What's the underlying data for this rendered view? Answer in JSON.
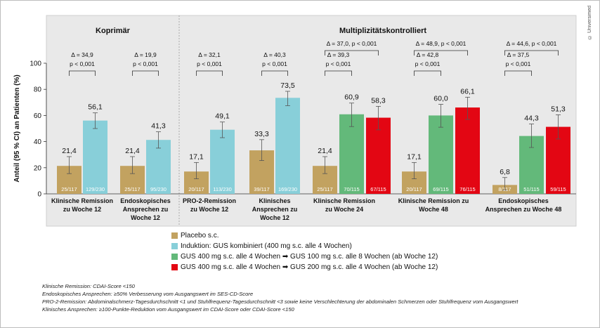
{
  "chart_data": {
    "type": "bar",
    "ylabel": "Anteil (95 % CI) an Patienten (%)",
    "ylim": [
      0,
      100
    ],
    "yticks": [
      "0",
      "20",
      "40",
      "60",
      "80",
      "100"
    ],
    "sections": [
      "Koprimär",
      "Multiplizitätskontrolliert"
    ],
    "series": [
      {
        "name": "Placebo s.c.",
        "color": "#c2a260"
      },
      {
        "name": "Induktion: GUS kombiniert (400 mg s.c. alle 4 Wochen)",
        "color": "#88cfd9"
      },
      {
        "name": "GUS 400 mg s.c. alle 4 Wochen ➡ GUS 100 mg s.c. alle 8 Wochen (ab Woche 12)",
        "color": "#63b97a"
      },
      {
        "name": "GUS 400 mg s.c. alle 4 Wochen ➡ GUS 200 mg s.c. alle 4 Wochen (ab Woche 12)",
        "color": "#e30613"
      }
    ],
    "groups": [
      {
        "label": [
          "Klinische Remission",
          "zu Woche 12"
        ],
        "bars": [
          {
            "series": 0,
            "value": 21.4,
            "label": "21,4",
            "ci": [
              15.5,
              28.5
            ],
            "n": "25/117"
          },
          {
            "series": 1,
            "value": 56.1,
            "label": "56,1",
            "ci": [
              50.0,
              62.0
            ],
            "n": "129/230"
          }
        ],
        "annotations": [
          {
            "from": 0,
            "to": 1,
            "level": 1,
            "delta": "Δ = 34,9",
            "p": "p < 0,001"
          }
        ]
      },
      {
        "label": [
          "Endoskopisches",
          "Ansprechen zu",
          "Woche 12"
        ],
        "bars": [
          {
            "series": 0,
            "value": 21.4,
            "label": "21,4",
            "ci": [
              15.5,
              28.5
            ],
            "n": "25/117"
          },
          {
            "series": 1,
            "value": 41.3,
            "label": "41,3",
            "ci": [
              35.0,
              47.5
            ],
            "n": "95/230"
          }
        ],
        "annotations": [
          {
            "from": 0,
            "to": 1,
            "level": 1,
            "delta": "Δ = 19,9",
            "p": "p < 0,001"
          }
        ]
      },
      {
        "label": [
          "PRO-2-Remission",
          "zu Woche 12"
        ],
        "bars": [
          {
            "series": 0,
            "value": 17.1,
            "label": "17,1",
            "ci": [
              11.5,
              24.0
            ],
            "n": "20/117"
          },
          {
            "series": 1,
            "value": 49.1,
            "label": "49,1",
            "ci": [
              43.0,
              55.0
            ],
            "n": "113/230"
          }
        ],
        "annotations": [
          {
            "from": 0,
            "to": 1,
            "level": 1,
            "delta": "Δ = 32,1",
            "p": "p < 0,001"
          }
        ]
      },
      {
        "label": [
          "Klinisches",
          "Ansprechen zu",
          "Woche 12"
        ],
        "bars": [
          {
            "series": 0,
            "value": 33.3,
            "label": "33,3",
            "ci": [
              25.5,
              41.5
            ],
            "n": "39/117"
          },
          {
            "series": 1,
            "value": 73.5,
            "label": "73,5",
            "ci": [
              67.5,
              78.5
            ],
            "n": "169/230"
          }
        ],
        "annotations": [
          {
            "from": 0,
            "to": 1,
            "level": 1,
            "delta": "Δ = 40,3",
            "p": "p < 0,001"
          }
        ]
      },
      {
        "label": [
          "Klinische Remission",
          "zu Woche 24"
        ],
        "bars": [
          {
            "series": 0,
            "value": 21.4,
            "label": "21,4",
            "ci": [
              15.5,
              28.5
            ],
            "n": "25/117"
          },
          {
            "series": 2,
            "value": 60.9,
            "label": "60,9",
            "ci": [
              51.5,
              69.5
            ],
            "n": "70/115"
          },
          {
            "series": 3,
            "value": 58.3,
            "label": "58,3",
            "ci": [
              49.0,
              67.0
            ],
            "n": "67/115"
          }
        ],
        "annotations": [
          {
            "from": 0,
            "to": 1,
            "level": 1,
            "delta": "Δ = 39,3",
            "p": "p < 0,001"
          },
          {
            "from": 0,
            "to": 2,
            "level": 2,
            "text": "Δ = 37,0, p < 0,001"
          }
        ]
      },
      {
        "label": [
          "Klinische Remission zu",
          "Woche 48"
        ],
        "bars": [
          {
            "series": 0,
            "value": 17.1,
            "label": "17,1",
            "ci": [
              11.5,
              24.0
            ],
            "n": "20/117"
          },
          {
            "series": 2,
            "value": 60.0,
            "label": "60,0",
            "ci": [
              51.0,
              68.5
            ],
            "n": "69/115"
          },
          {
            "series": 3,
            "value": 66.1,
            "label": "66,1",
            "ci": [
              57.0,
              74.0
            ],
            "n": "76/115"
          }
        ],
        "annotations": [
          {
            "from": 0,
            "to": 1,
            "level": 1,
            "delta": "Δ = 42,8",
            "p": "p < 0,001"
          },
          {
            "from": 0,
            "to": 2,
            "level": 2,
            "text": "Δ = 48,9, p < 0,001"
          }
        ]
      },
      {
        "label": [
          "Endoskopisches",
          "Ansprechen zu Woche 48"
        ],
        "bars": [
          {
            "series": 0,
            "value": 6.8,
            "label": "6,8",
            "ci": [
              3.0,
              12.5
            ],
            "n": "8/117"
          },
          {
            "series": 2,
            "value": 44.3,
            "label": "44,3",
            "ci": [
              35.5,
              53.5
            ],
            "n": "51/115"
          },
          {
            "series": 3,
            "value": 51.3,
            "label": "51,3",
            "ci": [
              42.0,
              60.5
            ],
            "n": "59/115"
          }
        ],
        "annotations": [
          {
            "from": 0,
            "to": 1,
            "level": 1,
            "delta": "Δ = 37,5",
            "p": "p < 0,001"
          },
          {
            "from": 0,
            "to": 2,
            "level": 2,
            "text": "Δ = 44,6, p < 0,001"
          }
        ]
      }
    ]
  },
  "footnotes": [
    "Klinische Remission: CDAI-Score <150",
    "Endoskopisches Ansprechen: ≥50% Verbesserung vom Ausgangswert im SES-CD-Score",
    "PRO-2-Remission: Abdominalschmerz-Tagesdurchschnitt <1 und Stuhlfrequenz-Tagesdurchschnitt <3 sowie keine Verschlechterung der abdominalen Schmerzen oder Stuhlfrequenz vom Ausgangswert",
    "Klinisches Ansprechen: ≥100-Punkte-Reduktion vom Ausgangswert im CDAI-Score oder CDAI-Score <150"
  ],
  "copyright": "© Universimed"
}
